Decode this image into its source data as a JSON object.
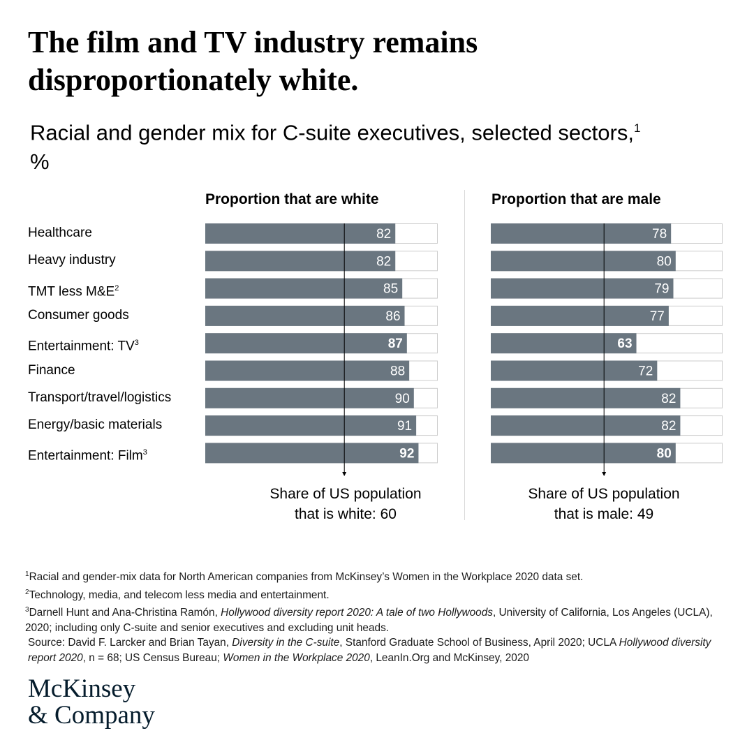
{
  "headline": "The film and TV industry remains disproportionately white.",
  "subtitle": {
    "text": "Racial and gender mix for C-suite executives, selected sectors,",
    "footnote_mark": "1",
    "unit": "%"
  },
  "colors": {
    "bar_fill": "#6a7680",
    "bar_track": "#ffffff",
    "bar_border": "#cccccc",
    "value_text": "#ffffff",
    "reference_line": "#000000"
  },
  "chart_data": {
    "type": "bar",
    "orientation": "horizontal",
    "xlim": [
      0,
      100
    ],
    "categories": [
      {
        "label": "Healthcare",
        "sup": "",
        "highlight": false
      },
      {
        "label": "Heavy industry",
        "sup": "",
        "highlight": false
      },
      {
        "label": "TMT less M&E",
        "sup": "2",
        "highlight": false
      },
      {
        "label": "Consumer goods",
        "sup": "",
        "highlight": false
      },
      {
        "label": "Entertainment: TV",
        "sup": "3",
        "highlight": true
      },
      {
        "label": "Finance",
        "sup": "",
        "highlight": false
      },
      {
        "label": "Transport/travel/logistics",
        "sup": "",
        "highlight": false
      },
      {
        "label": "Energy/basic materials",
        "sup": "",
        "highlight": false
      },
      {
        "label": "Entertainment: Film",
        "sup": "3",
        "highlight": true
      }
    ],
    "series": [
      {
        "name": "Proportion that are white",
        "values": [
          82,
          82,
          85,
          86,
          87,
          88,
          90,
          91,
          92
        ],
        "reference": {
          "value": 60,
          "caption_line1": "Share of US population",
          "caption_line2": "that is white: ",
          "caption_value": "60"
        }
      },
      {
        "name": "Proportion that are male",
        "values": [
          78,
          80,
          79,
          77,
          63,
          72,
          82,
          82,
          80
        ],
        "reference": {
          "value": 49,
          "caption_line1": "Share of US population",
          "caption_line2": "that is male: ",
          "caption_value": "49"
        }
      }
    ]
  },
  "footnotes": [
    {
      "mark": "1",
      "text": "Racial and gender-mix data for North American companies from McKinsey’s Women in the Workplace 2020 data set."
    },
    {
      "mark": "2",
      "text": "Technology, media, and telecom less media and entertainment."
    },
    {
      "mark": "3",
      "pre": "Darnell Hunt and Ana-Christina Ramón, ",
      "italic": "Hollywood diversity report 2020: A tale of two Hollywoods",
      "post": ", University of California, Los Angeles (UCLA), 2020; including only C-suite and senior executives and excluding unit heads."
    }
  ],
  "source": {
    "p1": "Source: David F. Larcker and Brian Tayan, ",
    "i1": "Diversity in the C-suite",
    "p2": ", Stanford Graduate School of Business, April 2020; UCLA ",
    "i2": "Hollywood diversity report 2020",
    "p3": ", n = 68; US Census Bureau; ",
    "i3": "Women in the Workplace 2020",
    "p4": ", LeanIn.Org and McKinsey, 2020"
  },
  "logo": {
    "line1": "McKinsey",
    "line2": "& Company"
  }
}
